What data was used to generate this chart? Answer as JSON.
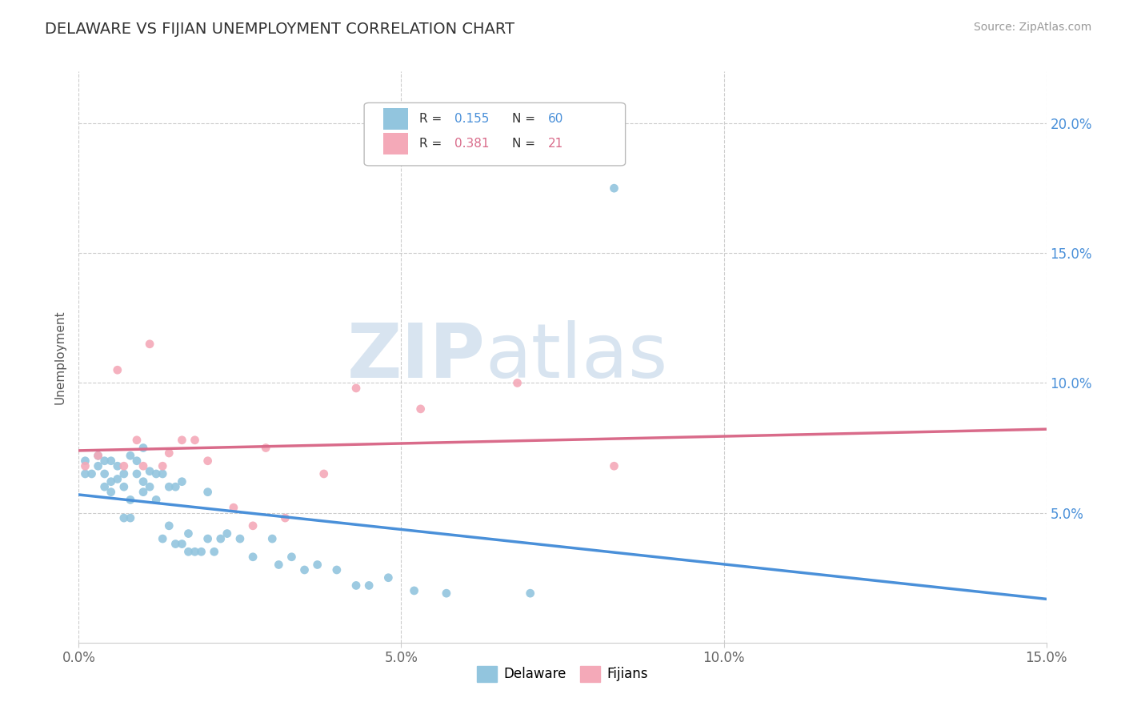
{
  "title": "DELAWARE VS FIJIAN UNEMPLOYMENT CORRELATION CHART",
  "source_text": "Source: ZipAtlas.com",
  "ylabel_label": "Unemployment",
  "xlim": [
    0.0,
    0.15
  ],
  "ylim": [
    0.0,
    0.22
  ],
  "x_ticks": [
    0.0,
    0.05,
    0.1,
    0.15
  ],
  "x_tick_labels": [
    "0.0%",
    "5.0%",
    "10.0%",
    "15.0%"
  ],
  "y_ticks": [
    0.05,
    0.1,
    0.15,
    0.2
  ],
  "y_tick_labels": [
    "5.0%",
    "10.0%",
    "15.0%",
    "20.0%"
  ],
  "delaware_color": "#92c5de",
  "fijian_color": "#f4a9b8",
  "delaware_line_color": "#4a90d9",
  "fijian_line_color": "#d96b8a",
  "R_delaware": 0.155,
  "N_delaware": 60,
  "R_fijian": 0.381,
  "N_fijian": 21,
  "legend_color_delaware": "#4a90d9",
  "legend_color_fijian": "#d96b8a",
  "watermark_zip": "ZIP",
  "watermark_atlas": "atlas",
  "watermark_color": "#d8e4f0",
  "background_color": "#ffffff",
  "grid_color": "#cccccc",
  "tick_color_y": "#4a90d9",
  "tick_color_x": "#666666",
  "delaware_x": [
    0.001,
    0.001,
    0.002,
    0.003,
    0.003,
    0.004,
    0.004,
    0.004,
    0.005,
    0.005,
    0.005,
    0.006,
    0.006,
    0.007,
    0.007,
    0.007,
    0.008,
    0.008,
    0.008,
    0.009,
    0.009,
    0.01,
    0.01,
    0.01,
    0.011,
    0.011,
    0.012,
    0.012,
    0.013,
    0.013,
    0.014,
    0.014,
    0.015,
    0.015,
    0.016,
    0.016,
    0.017,
    0.017,
    0.018,
    0.019,
    0.02,
    0.02,
    0.021,
    0.022,
    0.023,
    0.025,
    0.027,
    0.03,
    0.031,
    0.033,
    0.035,
    0.037,
    0.04,
    0.043,
    0.045,
    0.048,
    0.052,
    0.057,
    0.07,
    0.083
  ],
  "delaware_y": [
    0.065,
    0.07,
    0.065,
    0.068,
    0.072,
    0.06,
    0.065,
    0.07,
    0.062,
    0.07,
    0.058,
    0.063,
    0.068,
    0.06,
    0.065,
    0.048,
    0.055,
    0.048,
    0.072,
    0.065,
    0.07,
    0.058,
    0.062,
    0.075,
    0.06,
    0.066,
    0.055,
    0.065,
    0.04,
    0.065,
    0.045,
    0.06,
    0.038,
    0.06,
    0.038,
    0.062,
    0.035,
    0.042,
    0.035,
    0.035,
    0.04,
    0.058,
    0.035,
    0.04,
    0.042,
    0.04,
    0.033,
    0.04,
    0.03,
    0.033,
    0.028,
    0.03,
    0.028,
    0.022,
    0.022,
    0.025,
    0.02,
    0.019,
    0.019,
    0.175
  ],
  "fijian_x": [
    0.001,
    0.003,
    0.006,
    0.007,
    0.009,
    0.01,
    0.011,
    0.013,
    0.014,
    0.016,
    0.018,
    0.02,
    0.024,
    0.027,
    0.029,
    0.032,
    0.038,
    0.043,
    0.053,
    0.068,
    0.083
  ],
  "fijian_y": [
    0.068,
    0.072,
    0.105,
    0.068,
    0.078,
    0.068,
    0.115,
    0.068,
    0.073,
    0.078,
    0.078,
    0.07,
    0.052,
    0.045,
    0.075,
    0.048,
    0.065,
    0.098,
    0.09,
    0.1,
    0.068
  ]
}
